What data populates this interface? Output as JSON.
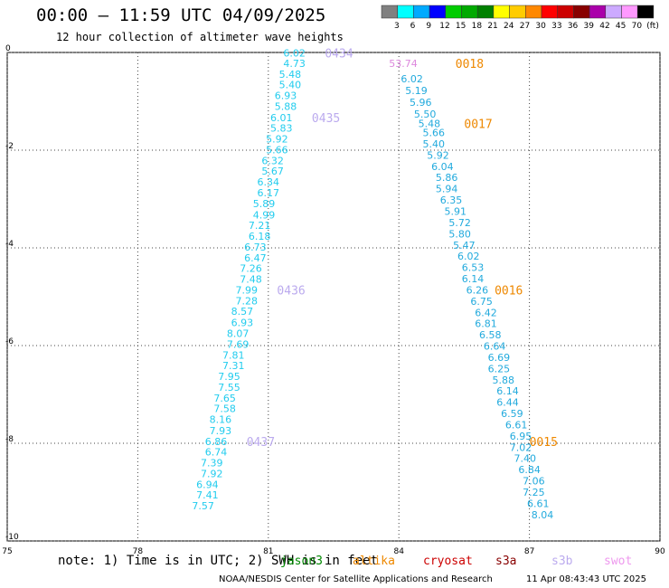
{
  "header": {
    "title": "00:00 – 11:59 UTC 04/09/2025",
    "subtitle": "12 hour collection of altimeter wave heights"
  },
  "colorbar": {
    "labels": [
      "3",
      "6",
      "9",
      "12",
      "15",
      "18",
      "21",
      "24",
      "27",
      "30",
      "33",
      "36",
      "39",
      "42",
      "45",
      "70",
      "(ft)"
    ],
    "colors": [
      "#808080",
      "#00ffff",
      "#00aaff",
      "#0000ff",
      "#00cc00",
      "#00aa00",
      "#008000",
      "#ffff00",
      "#ffcc00",
      "#ff8800",
      "#ff0000",
      "#cc0000",
      "#880000",
      "#aa00aa",
      "#ccaaff",
      "#ff99ff",
      "#000000"
    ]
  },
  "axes": {
    "x_ticks": [
      "75",
      "78",
      "81",
      "84",
      "87",
      "90"
    ],
    "y_ticks": [
      "0",
      "-2",
      "-4",
      "-6",
      "-8",
      "-10"
    ],
    "xlim": [
      75,
      90
    ],
    "ylim": [
      -10,
      0
    ],
    "grid": true
  },
  "tracks": [
    {
      "color": "#22ccee",
      "points": [
        [
          81.6,
          -0.01,
          "6.02"
        ],
        [
          81.6,
          -0.22,
          "4.73"
        ],
        [
          81.5,
          -0.44,
          "5.48"
        ],
        [
          81.5,
          -0.66,
          "5.40"
        ],
        [
          81.4,
          -0.88,
          "6.93"
        ],
        [
          81.4,
          -1.1,
          "5.88"
        ],
        [
          81.3,
          -1.33,
          "6.01"
        ],
        [
          81.3,
          -1.55,
          "5.83"
        ],
        [
          81.2,
          -1.77,
          "5.92"
        ],
        [
          81.2,
          -1.99,
          "5.66"
        ],
        [
          81.1,
          -2.21,
          "6.32"
        ],
        [
          81.1,
          -2.43,
          "5.67"
        ],
        [
          81.0,
          -2.65,
          "6.34"
        ],
        [
          81.0,
          -2.87,
          "6.17"
        ],
        [
          80.9,
          -3.09,
          "5.89"
        ],
        [
          80.9,
          -3.32,
          "4.99"
        ],
        [
          80.8,
          -3.54,
          "7.21"
        ],
        [
          80.8,
          -3.76,
          "6.18"
        ],
        [
          80.7,
          -3.98,
          "6.73"
        ],
        [
          80.7,
          -4.2,
          "6.47"
        ],
        [
          80.6,
          -4.42,
          "7.26"
        ],
        [
          80.6,
          -4.64,
          "7.48"
        ],
        [
          80.5,
          -4.86,
          "7.99"
        ],
        [
          80.5,
          -5.08,
          "7.28"
        ],
        [
          80.4,
          -5.3,
          "8.57"
        ],
        [
          80.4,
          -5.53,
          "6.93"
        ],
        [
          80.3,
          -5.75,
          "8.07"
        ],
        [
          80.3,
          -5.97,
          "7.69"
        ],
        [
          80.2,
          -6.19,
          "7.81"
        ],
        [
          80.2,
          -6.41,
          "7.31"
        ],
        [
          80.1,
          -6.63,
          "7.95"
        ],
        [
          80.1,
          -6.85,
          "7.55"
        ],
        [
          80.0,
          -7.07,
          "7.65"
        ],
        [
          80.0,
          -7.29,
          "7.58"
        ],
        [
          79.9,
          -7.51,
          "8.16"
        ],
        [
          79.9,
          -7.74,
          "7.93"
        ],
        [
          79.8,
          -7.96,
          "6.86"
        ],
        [
          79.8,
          -8.18,
          "6.74"
        ],
        [
          79.7,
          -8.4,
          "7.39"
        ],
        [
          79.7,
          -8.62,
          "7.92"
        ],
        [
          79.6,
          -8.84,
          "6.94"
        ],
        [
          79.6,
          -9.06,
          "7.41"
        ],
        [
          79.5,
          -9.28,
          "7.57"
        ]
      ]
    },
    {
      "color": "#22aadd",
      "points": [
        [
          84.3,
          -0.54,
          "6.02"
        ],
        [
          84.4,
          -0.78,
          "5.19"
        ],
        [
          84.5,
          -1.02,
          "5.96"
        ],
        [
          84.6,
          -1.26,
          "5.50"
        ],
        [
          84.7,
          -1.45,
          "5.48"
        ],
        [
          84.8,
          -1.64,
          "5.66"
        ],
        [
          84.8,
          -1.87,
          "5.40"
        ],
        [
          84.9,
          -2.1,
          "5.92"
        ],
        [
          85.0,
          -2.33,
          "6.04"
        ],
        [
          85.1,
          -2.56,
          "5.86"
        ],
        [
          85.1,
          -2.79,
          "5.94"
        ],
        [
          85.2,
          -3.02,
          "6.35"
        ],
        [
          85.3,
          -3.25,
          "5.91"
        ],
        [
          85.4,
          -3.48,
          "5.72"
        ],
        [
          85.4,
          -3.71,
          "5.80"
        ],
        [
          85.5,
          -3.94,
          "5.47"
        ],
        [
          85.6,
          -4.17,
          "6.02"
        ],
        [
          85.7,
          -4.4,
          "6.53"
        ],
        [
          85.7,
          -4.63,
          "6.14"
        ],
        [
          85.8,
          -4.86,
          "6.26"
        ],
        [
          85.9,
          -5.09,
          "6.75"
        ],
        [
          86.0,
          -5.32,
          "6.42"
        ],
        [
          86.0,
          -5.55,
          "6.81"
        ],
        [
          86.1,
          -5.78,
          "6.58"
        ],
        [
          86.2,
          -6.01,
          "6.64"
        ],
        [
          86.3,
          -6.24,
          "6.69"
        ],
        [
          86.3,
          -6.47,
          "6.25"
        ],
        [
          86.4,
          -6.7,
          "5.88"
        ],
        [
          86.5,
          -6.93,
          "6.14"
        ],
        [
          86.5,
          -7.16,
          "6.44"
        ],
        [
          86.6,
          -7.39,
          "6.59"
        ],
        [
          86.7,
          -7.62,
          "6.61"
        ],
        [
          86.8,
          -7.85,
          "6.95"
        ],
        [
          86.8,
          -8.08,
          "7.02"
        ],
        [
          86.9,
          -8.31,
          "7.40"
        ],
        [
          87.0,
          -8.54,
          "6.84"
        ],
        [
          87.1,
          -8.77,
          "7.06"
        ],
        [
          87.1,
          -9.0,
          "7.25"
        ],
        [
          87.2,
          -9.23,
          "6.61"
        ],
        [
          87.3,
          -9.46,
          "8.04"
        ]
      ]
    }
  ],
  "special_points": [
    {
      "lon": 84.1,
      "lat": -0.22,
      "text": "53.74",
      "color": "#dd88dd"
    }
  ],
  "time_labels": [
    {
      "lon": 82.3,
      "lat": -0.01,
      "text": "0434",
      "color": "#bbaaee"
    },
    {
      "lon": 82.0,
      "lat": -1.33,
      "text": "0435",
      "color": "#bbaaee"
    },
    {
      "lon": 81.2,
      "lat": -4.86,
      "text": "0436",
      "color": "#bbaaee"
    },
    {
      "lon": 80.5,
      "lat": -7.96,
      "text": "0437",
      "color": "#bbaaee"
    },
    {
      "lon": 85.3,
      "lat": -0.22,
      "text": "0018",
      "color": "#ee8800"
    },
    {
      "lon": 85.5,
      "lat": -1.45,
      "text": "0017",
      "color": "#ee8800"
    },
    {
      "lon": 86.2,
      "lat": -4.86,
      "text": "0016",
      "color": "#ee8800"
    },
    {
      "lon": 87.0,
      "lat": -7.96,
      "text": "0015",
      "color": "#ee8800"
    }
  ],
  "footer": {
    "note": "note: 1) Time is in UTC; 2) SWH is in feet",
    "credit": "NOAA/NESDIS Center for Satellite Applications and Research",
    "timestamp": "11 Apr 08:43:43 UTC 2025"
  },
  "legend": [
    {
      "label": "jason3",
      "color": "#008800"
    },
    {
      "label": "altika",
      "color": "#ee8800"
    },
    {
      "label": "cryosat",
      "color": "#cc0000"
    },
    {
      "label": "s3a",
      "color": "#880000"
    },
    {
      "label": "s3b",
      "color": "#bbaaee"
    },
    {
      "label": "swot",
      "color": "#ee99ee"
    }
  ]
}
